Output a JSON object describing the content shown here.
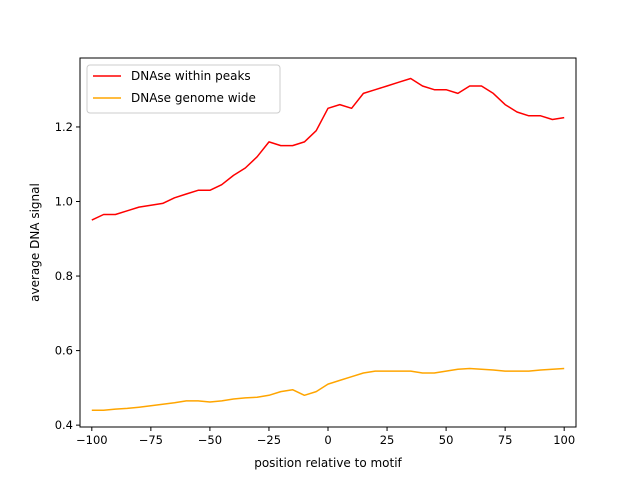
{
  "chart_data": {
    "type": "line",
    "xlabel": "position relative to motif",
    "ylabel": "average DNA signal",
    "xlim": [
      -105,
      105
    ],
    "ylim": [
      0.395,
      1.385
    ],
    "xticks": [
      -100,
      -75,
      -50,
      -25,
      0,
      25,
      50,
      75,
      100
    ],
    "xtick_labels": [
      "−100",
      "−75",
      "−50",
      "−25",
      "0",
      "25",
      "50",
      "75",
      "100"
    ],
    "yticks": [
      0.4,
      0.6,
      0.8,
      1.0,
      1.2
    ],
    "ytick_labels": [
      "0.4",
      "0.6",
      "0.8",
      "1.0",
      "1.2"
    ],
    "grid": false,
    "legend_position": "top-left",
    "series": [
      {
        "name": "DNAse within peaks",
        "color": "#ff0000",
        "x": [
          -100,
          -95,
          -90,
          -85,
          -80,
          -75,
          -70,
          -65,
          -60,
          -55,
          -50,
          -45,
          -40,
          -35,
          -30,
          -25,
          -20,
          -15,
          -10,
          -5,
          0,
          5,
          10,
          15,
          20,
          25,
          30,
          35,
          40,
          45,
          50,
          55,
          60,
          65,
          70,
          75,
          80,
          85,
          90,
          95,
          100
        ],
        "values": [
          0.95,
          0.965,
          0.965,
          0.975,
          0.985,
          0.99,
          0.995,
          1.01,
          1.02,
          1.03,
          1.03,
          1.045,
          1.07,
          1.09,
          1.12,
          1.16,
          1.15,
          1.15,
          1.16,
          1.19,
          1.25,
          1.26,
          1.25,
          1.29,
          1.3,
          1.31,
          1.32,
          1.33,
          1.31,
          1.3,
          1.3,
          1.29,
          1.31,
          1.31,
          1.29,
          1.26,
          1.24,
          1.23,
          1.23,
          1.22,
          1.225
        ]
      },
      {
        "name": "DNAse genome wide",
        "color": "#ffa500",
        "x": [
          -100,
          -95,
          -90,
          -85,
          -80,
          -75,
          -70,
          -65,
          -60,
          -55,
          -50,
          -45,
          -40,
          -35,
          -30,
          -25,
          -20,
          -15,
          -10,
          -5,
          0,
          5,
          10,
          15,
          20,
          25,
          30,
          35,
          40,
          45,
          50,
          55,
          60,
          65,
          70,
          75,
          80,
          85,
          90,
          95,
          100
        ],
        "values": [
          0.44,
          0.44,
          0.443,
          0.445,
          0.448,
          0.452,
          0.456,
          0.46,
          0.465,
          0.465,
          0.462,
          0.465,
          0.47,
          0.473,
          0.475,
          0.48,
          0.49,
          0.495,
          0.48,
          0.49,
          0.51,
          0.52,
          0.53,
          0.54,
          0.545,
          0.545,
          0.545,
          0.545,
          0.54,
          0.54,
          0.545,
          0.55,
          0.552,
          0.55,
          0.548,
          0.545,
          0.545,
          0.545,
          0.548,
          0.55,
          0.552
        ]
      }
    ]
  }
}
